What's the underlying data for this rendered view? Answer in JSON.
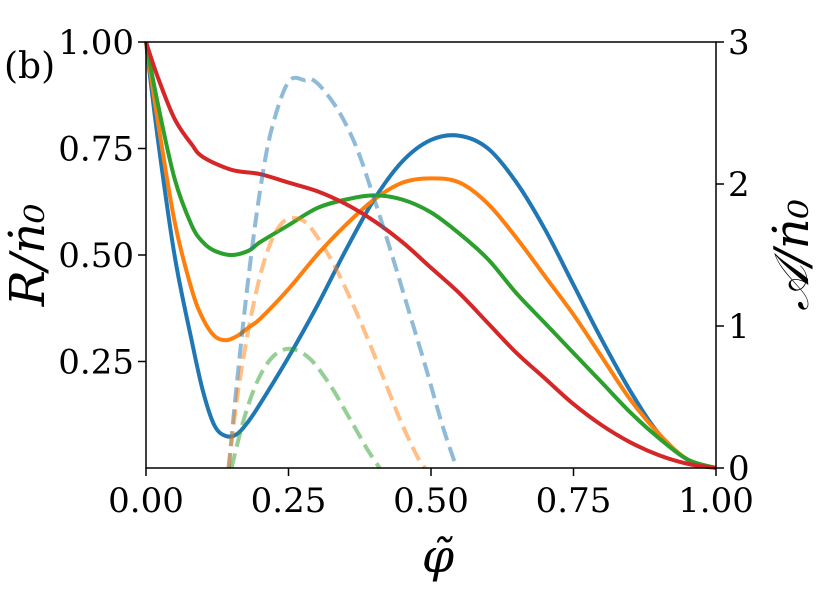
{
  "chart_data": {
    "type": "line",
    "panel_label": "(b)",
    "xlabel": "φ̃",
    "ylabel_left": "R/ṅ₀",
    "ylabel_right": "𝒜/ṅ₀",
    "xlim": [
      0,
      1
    ],
    "ylim_left": [
      0,
      1
    ],
    "ylim_right": [
      0,
      3
    ],
    "xticks": [
      0,
      0.25,
      0.5,
      0.75,
      1.0
    ],
    "xtick_labels": [
      "0.00",
      "0.25",
      "0.50",
      "0.75",
      "1.00"
    ],
    "yticks_left": [
      0.25,
      0.5,
      0.75,
      1.0
    ],
    "ytick_labels_left": [
      "0.25",
      "0.50",
      "0.75",
      "1.00"
    ],
    "yticks_right": [
      0,
      1,
      2,
      3
    ],
    "ytick_labels_right": [
      "0",
      "1",
      "2",
      "3"
    ],
    "grid": false,
    "series": [
      {
        "axis": "left",
        "style": "solid",
        "color": "#1f77b4",
        "x": [
          0,
          0.02,
          0.05,
          0.08,
          0.1,
          0.12,
          0.14,
          0.16,
          0.18,
          0.2,
          0.25,
          0.3,
          0.35,
          0.4,
          0.45,
          0.5,
          0.55,
          0.6,
          0.65,
          0.7,
          0.75,
          0.8,
          0.85,
          0.9,
          0.95,
          1.0
        ],
        "y": [
          1.0,
          0.78,
          0.5,
          0.3,
          0.18,
          0.1,
          0.075,
          0.08,
          0.11,
          0.15,
          0.26,
          0.38,
          0.51,
          0.63,
          0.72,
          0.77,
          0.78,
          0.75,
          0.67,
          0.56,
          0.43,
          0.3,
          0.18,
          0.08,
          0.02,
          0.0
        ]
      },
      {
        "axis": "left",
        "style": "solid",
        "color": "#ff7f0e",
        "x": [
          0,
          0.02,
          0.05,
          0.08,
          0.1,
          0.12,
          0.14,
          0.16,
          0.18,
          0.2,
          0.25,
          0.3,
          0.35,
          0.4,
          0.45,
          0.5,
          0.55,
          0.6,
          0.65,
          0.7,
          0.75,
          0.8,
          0.85,
          0.9,
          0.95,
          1.0
        ],
        "y": [
          1.0,
          0.82,
          0.58,
          0.42,
          0.35,
          0.31,
          0.3,
          0.31,
          0.33,
          0.35,
          0.42,
          0.5,
          0.57,
          0.63,
          0.67,
          0.68,
          0.67,
          0.62,
          0.54,
          0.45,
          0.36,
          0.26,
          0.16,
          0.08,
          0.02,
          0.0
        ]
      },
      {
        "axis": "left",
        "style": "solid",
        "color": "#2ca02c",
        "x": [
          0,
          0.02,
          0.05,
          0.08,
          0.1,
          0.12,
          0.15,
          0.18,
          0.2,
          0.25,
          0.3,
          0.35,
          0.4,
          0.45,
          0.5,
          0.55,
          0.6,
          0.65,
          0.7,
          0.75,
          0.8,
          0.85,
          0.9,
          0.95,
          1.0
        ],
        "y": [
          1.0,
          0.86,
          0.68,
          0.57,
          0.53,
          0.51,
          0.5,
          0.51,
          0.53,
          0.57,
          0.61,
          0.63,
          0.64,
          0.63,
          0.6,
          0.55,
          0.49,
          0.41,
          0.34,
          0.27,
          0.2,
          0.13,
          0.07,
          0.02,
          0.0
        ]
      },
      {
        "axis": "left",
        "style": "solid",
        "color": "#d62728",
        "x": [
          0,
          0.02,
          0.05,
          0.08,
          0.1,
          0.15,
          0.2,
          0.25,
          0.3,
          0.35,
          0.4,
          0.45,
          0.5,
          0.55,
          0.6,
          0.65,
          0.7,
          0.75,
          0.8,
          0.85,
          0.9,
          0.95,
          1.0
        ],
        "y": [
          1.0,
          0.92,
          0.82,
          0.76,
          0.73,
          0.7,
          0.69,
          0.67,
          0.65,
          0.62,
          0.58,
          0.53,
          0.47,
          0.41,
          0.34,
          0.27,
          0.21,
          0.15,
          0.1,
          0.06,
          0.03,
          0.01,
          0.0
        ]
      },
      {
        "axis": "right",
        "style": "dashed",
        "color": "#1f77b4",
        "alpha": 0.5,
        "x": [
          0.145,
          0.16,
          0.18,
          0.2,
          0.22,
          0.25,
          0.28,
          0.29,
          0.31,
          0.34,
          0.37,
          0.4,
          0.43,
          0.46,
          0.49,
          0.52,
          0.545
        ],
        "y": [
          0.0,
          0.62,
          1.35,
          1.95,
          2.38,
          2.72,
          2.73,
          2.74,
          2.67,
          2.5,
          2.25,
          1.9,
          1.52,
          1.12,
          0.72,
          0.3,
          0.0
        ]
      },
      {
        "axis": "right",
        "style": "dashed",
        "color": "#ff7f0e",
        "alpha": 0.5,
        "x": [
          0.145,
          0.16,
          0.18,
          0.2,
          0.22,
          0.24,
          0.26,
          0.28,
          0.3,
          0.33,
          0.36,
          0.39,
          0.42,
          0.45,
          0.48,
          0.49
        ],
        "y": [
          0.0,
          0.5,
          0.98,
          1.35,
          1.6,
          1.73,
          1.76,
          1.73,
          1.63,
          1.43,
          1.18,
          0.9,
          0.6,
          0.3,
          0.05,
          0.0
        ]
      },
      {
        "axis": "right",
        "style": "dashed",
        "color": "#2ca02c",
        "alpha": 0.5,
        "x": [
          0.15,
          0.17,
          0.19,
          0.21,
          0.23,
          0.25,
          0.27,
          0.29,
          0.31,
          0.33,
          0.35,
          0.37,
          0.39,
          0.41
        ],
        "y": [
          0.0,
          0.32,
          0.56,
          0.72,
          0.81,
          0.84,
          0.82,
          0.76,
          0.66,
          0.54,
          0.4,
          0.26,
          0.12,
          0.0
        ]
      }
    ]
  }
}
